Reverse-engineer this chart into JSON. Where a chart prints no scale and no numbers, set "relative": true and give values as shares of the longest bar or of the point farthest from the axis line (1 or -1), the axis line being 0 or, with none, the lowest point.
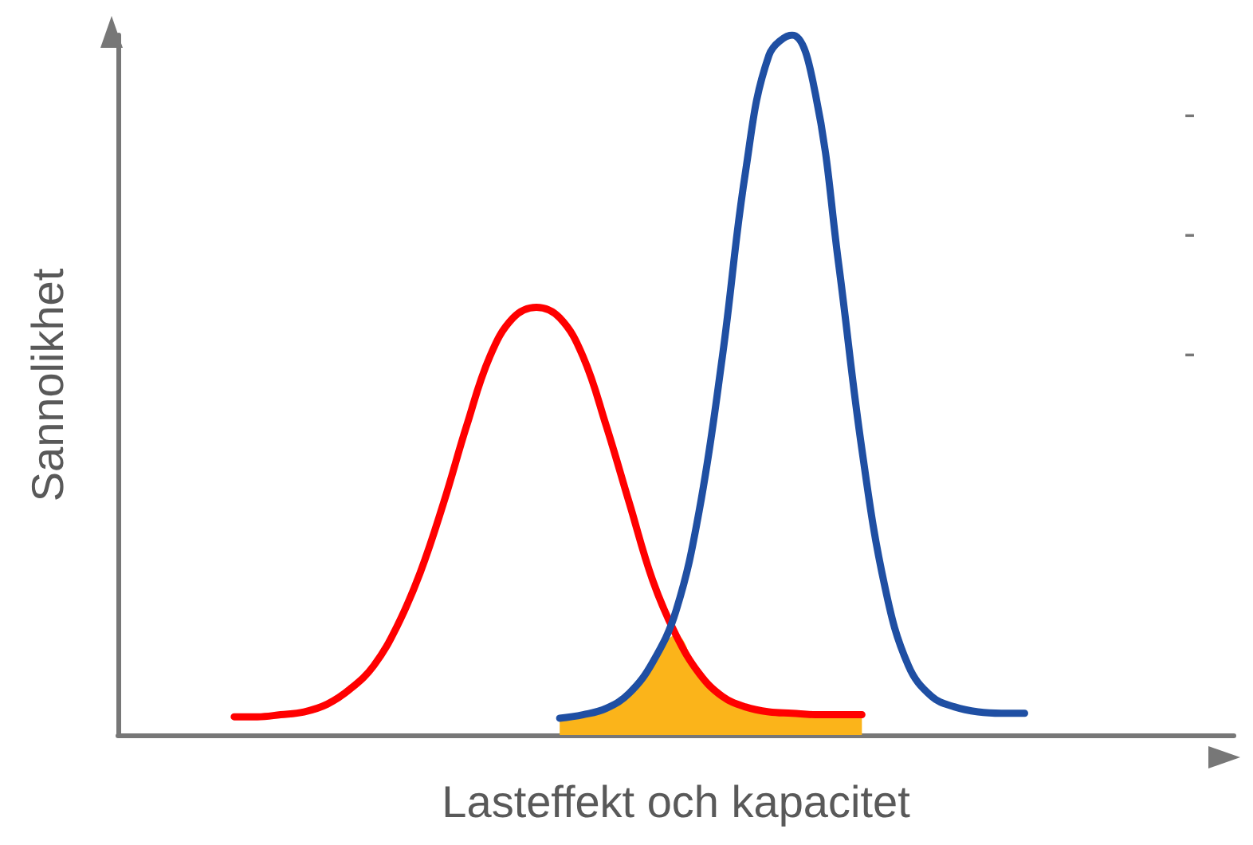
{
  "chart_data": {
    "type": "line",
    "relative": true,
    "xlabel": "Lasteffekt och kapacitet",
    "ylabel": "Sannolikhet",
    "categories": [
      null,
      null,
      null,
      null,
      null,
      null,
      null,
      null,
      null,
      null,
      null,
      null,
      null,
      null,
      null,
      null,
      null,
      null,
      null,
      null,
      null,
      null,
      null,
      null,
      null,
      null,
      null,
      null,
      null,
      null,
      null,
      null,
      null,
      null,
      null,
      null,
      null,
      null,
      null,
      null,
      null,
      null,
      null,
      null,
      null,
      null,
      null,
      null,
      null
    ],
    "series": [
      {
        "type": "area",
        "color": "#fbb41a",
        "values": [
          null,
          null,
          null,
          null,
          null,
          null,
          null,
          null,
          null,
          null,
          null,
          null,
          null,
          null,
          null,
          null,
          null,
          null,
          null,
          0.024,
          0.029,
          0.038,
          0.06,
          0.104,
          0.143,
          0.088,
          0.055,
          0.04,
          0.033,
          0.031,
          0.029,
          0.029,
          0.029,
          null,
          null,
          null,
          null,
          null,
          null,
          null,
          null,
          null,
          null,
          null,
          null,
          null,
          null,
          null,
          null
        ]
      },
      {
        "color": "#ff0000",
        "values": [
          null,
          null,
          null,
          null,
          null,
          0.026,
          0.026,
          0.029,
          0.033,
          0.044,
          0.066,
          0.099,
          0.155,
          0.232,
          0.331,
          0.442,
          0.541,
          0.596,
          0.611,
          0.596,
          0.541,
          0.442,
          0.331,
          0.221,
          0.143,
          0.088,
          0.055,
          0.04,
          0.033,
          0.031,
          0.029,
          0.029,
          0.029,
          null,
          null,
          null,
          null,
          null,
          null,
          null,
          null,
          null,
          null,
          null,
          null,
          null,
          null,
          null,
          null
        ]
      },
      {
        "color": "#1f4fa3",
        "values": [
          null,
          null,
          null,
          null,
          null,
          null,
          null,
          null,
          null,
          null,
          null,
          null,
          null,
          null,
          null,
          null,
          null,
          null,
          null,
          0.024,
          0.029,
          0.038,
          0.06,
          0.104,
          0.177,
          0.32,
          0.541,
          0.806,
          0.971,
          1,
          0.916,
          0.673,
          0.408,
          0.21,
          0.099,
          0.055,
          0.04,
          0.033,
          0.031,
          0.031,
          null,
          null,
          null,
          null,
          null,
          null,
          null,
          null,
          null
        ]
      }
    ],
    "annotations": [
      "-",
      "-",
      "-"
    ],
    "marker": "none",
    "line_style": "solid",
    "grid": false
  }
}
